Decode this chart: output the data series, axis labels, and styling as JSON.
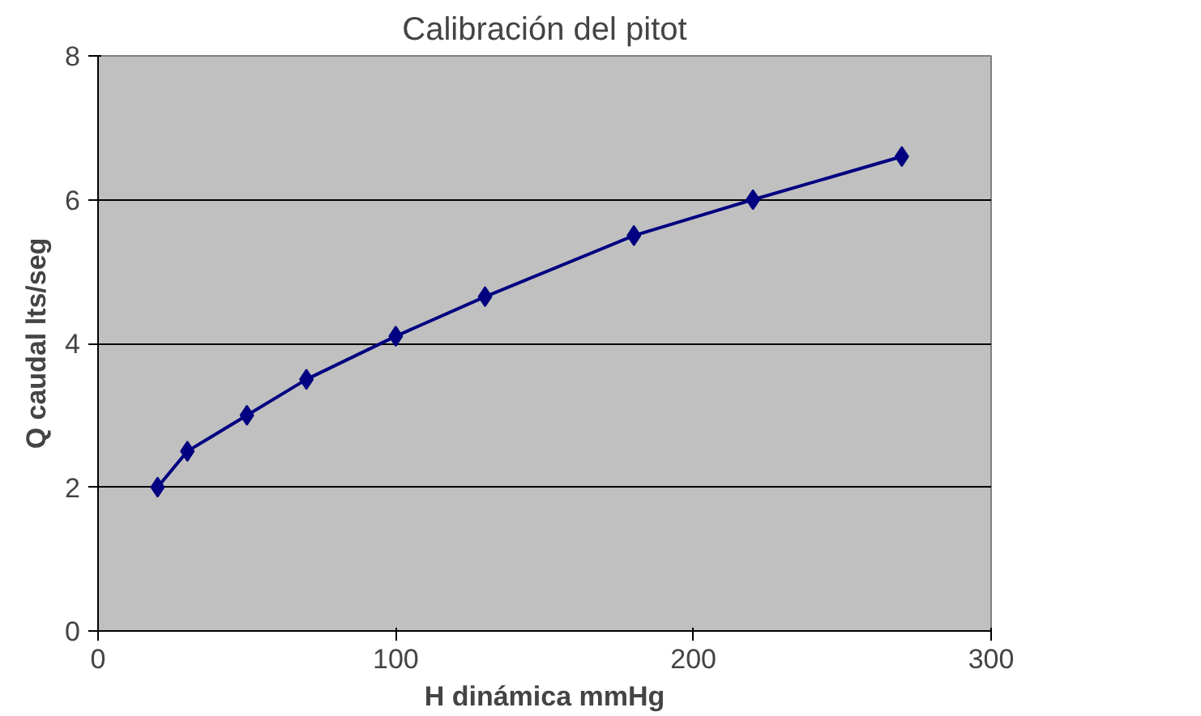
{
  "chart_data": {
    "type": "line",
    "title": "Calibración del pitot",
    "xlabel": "H dinámica mmHg",
    "ylabel": "Q caudal lts/seg",
    "x": [
      20,
      30,
      50,
      70,
      100,
      130,
      180,
      220,
      270
    ],
    "series": [
      {
        "color": "#000080",
        "values": [
          2.0,
          2.5,
          3.0,
          3.5,
          4.1,
          4.65,
          5.5,
          6.0,
          6.6
        ]
      }
    ],
    "xlim": [
      0,
      300
    ],
    "xticks": [
      0,
      100,
      200,
      300
    ],
    "ylim": [
      0,
      8
    ],
    "yticks": [
      0,
      2,
      4,
      6,
      8
    ],
    "grid": "y",
    "marker": "diamond",
    "line_style": "solid"
  }
}
